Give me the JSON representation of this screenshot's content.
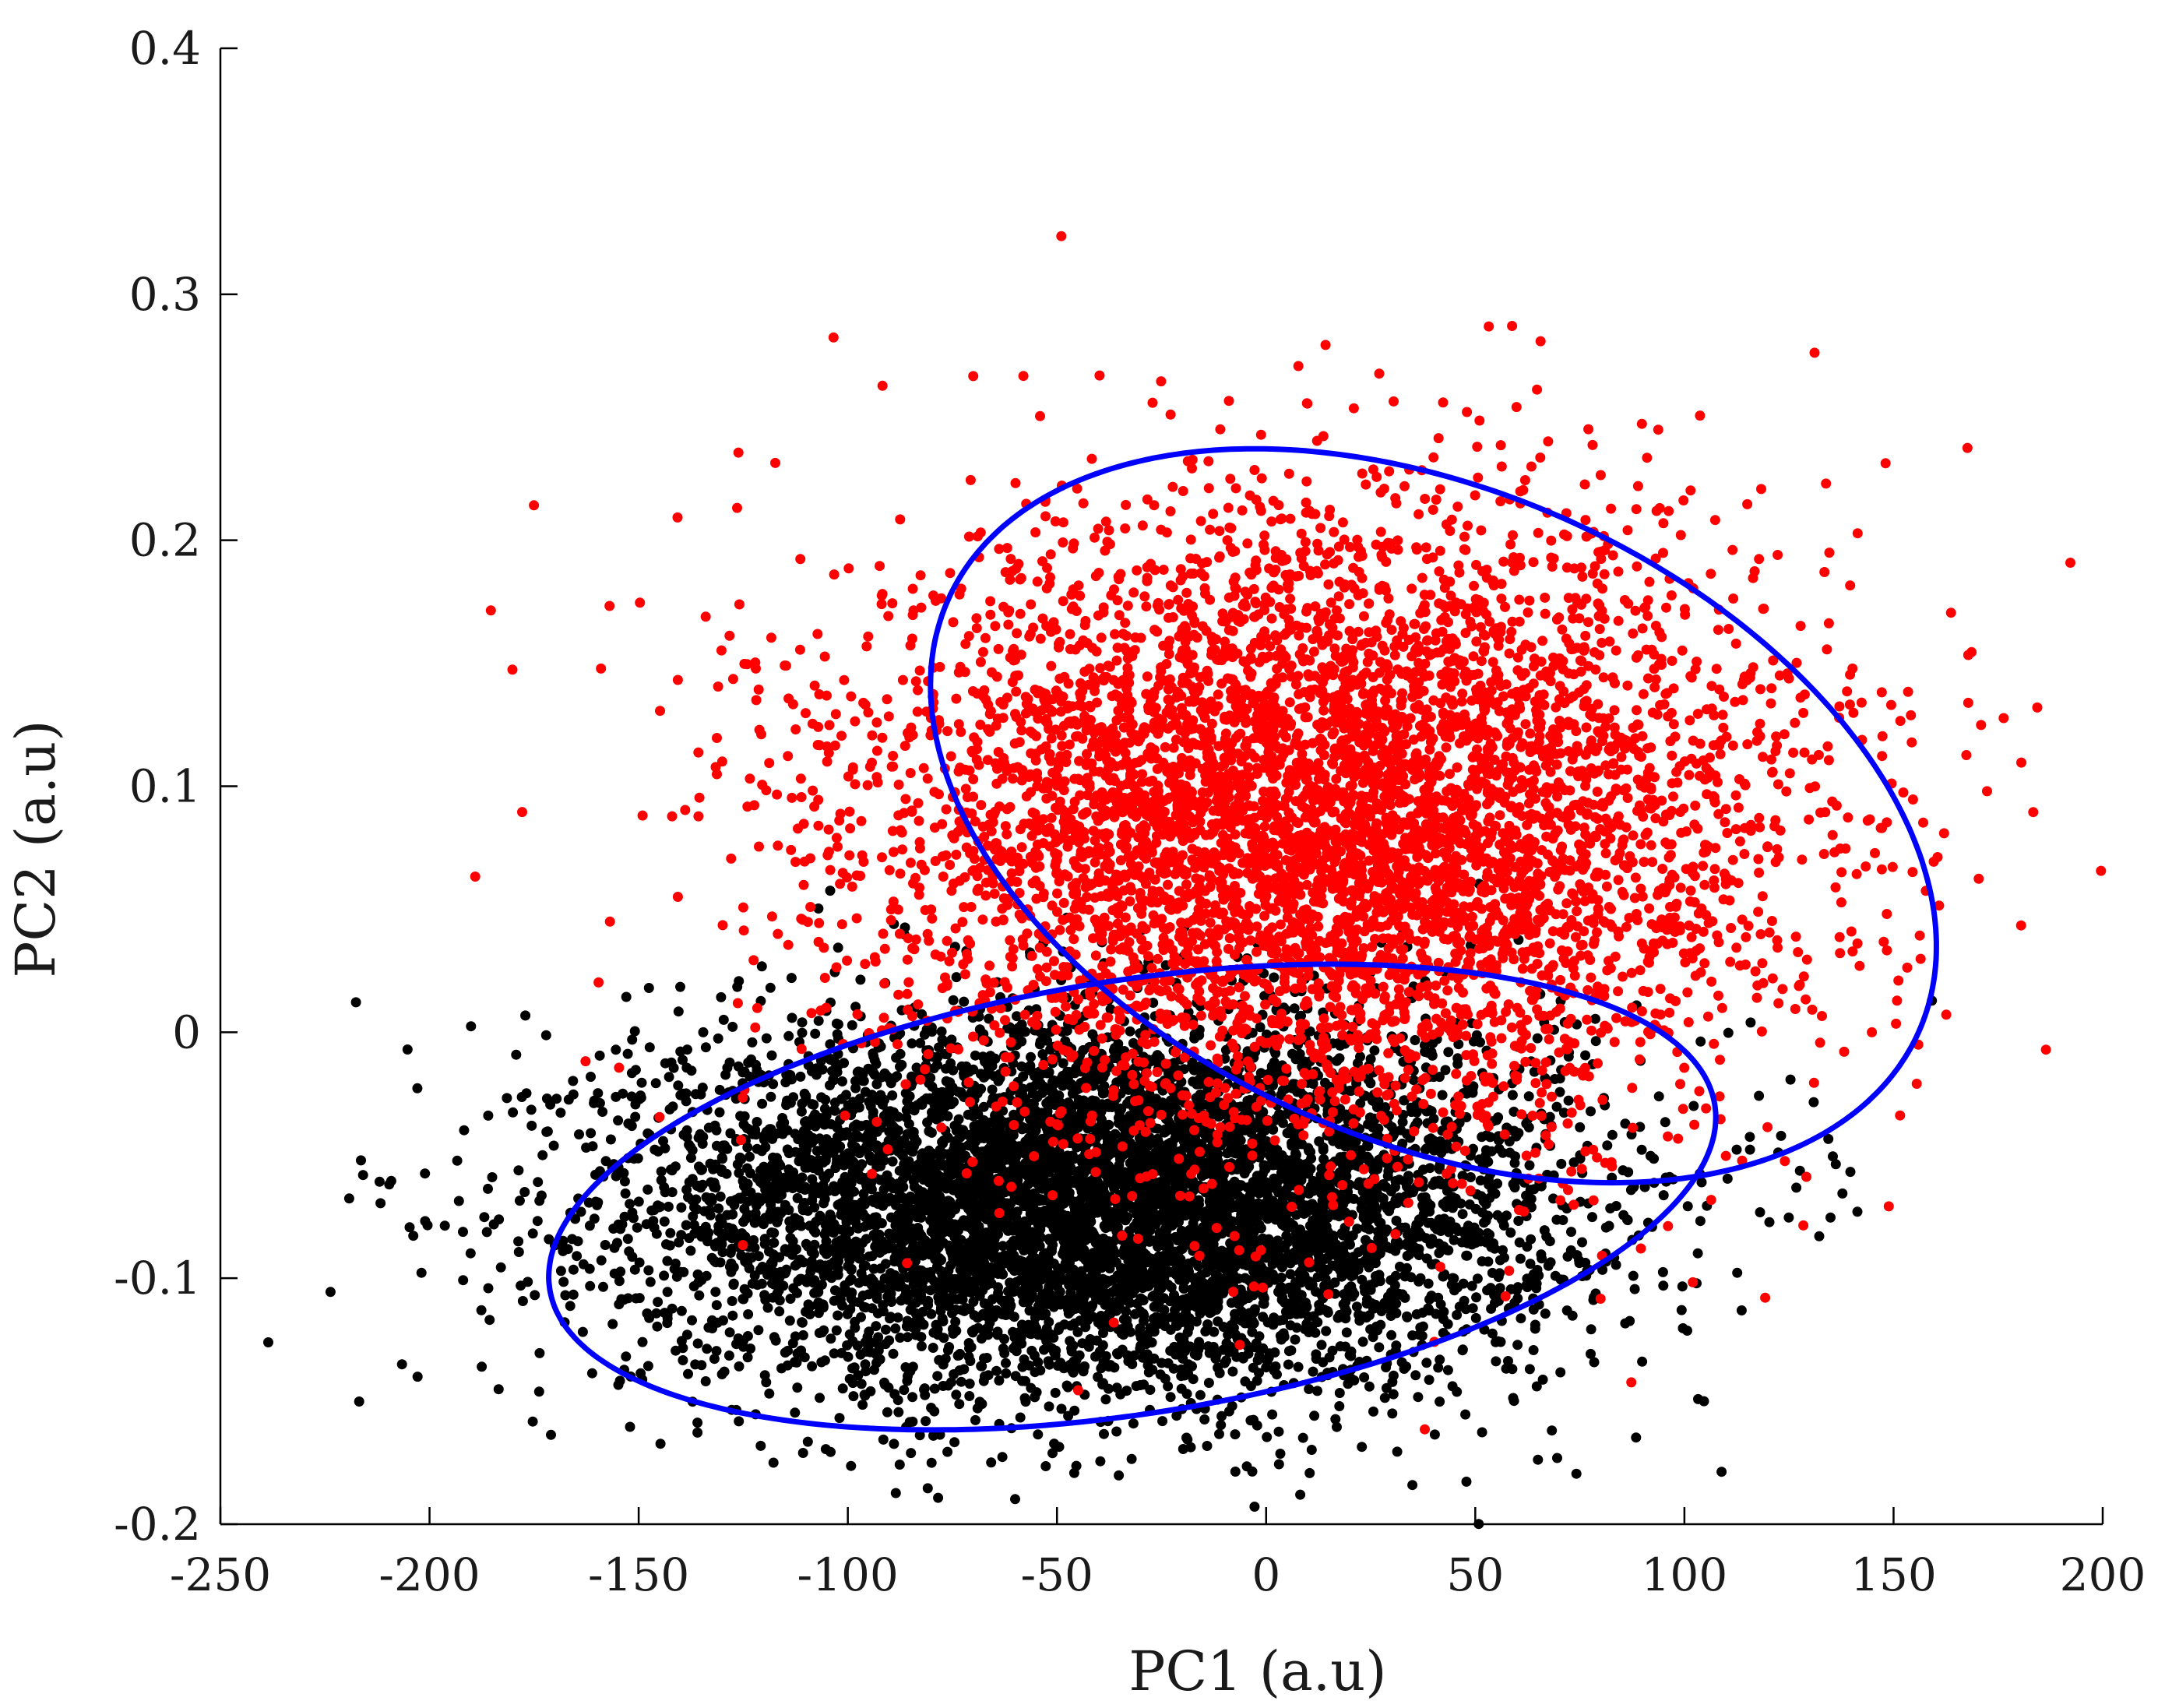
{
  "chart_data": {
    "type": "scatter",
    "title": "",
    "xlabel": "PC1 (a.u)",
    "ylabel": "PC2 (a.u)",
    "xlim": [
      -250,
      200
    ],
    "ylim": [
      -0.2,
      0.4
    ],
    "xticks": [
      -250,
      -200,
      -150,
      -100,
      -50,
      0,
      50,
      100,
      150,
      200
    ],
    "xtick_labels": [
      "-250",
      "-200",
      "-150",
      "-100",
      "-50",
      "0",
      "50",
      "100",
      "150",
      "200"
    ],
    "yticks": [
      -0.2,
      -0.1,
      0,
      0.1,
      0.2,
      0.3,
      0.4
    ],
    "ytick_labels": [
      "-0.2",
      "-0.1",
      "0",
      "0.1",
      "0.2",
      "0.3",
      "0.4"
    ],
    "grid": false,
    "legend": "none",
    "series": [
      {
        "color": "#000000",
        "center": [
          -40,
          -0.07
        ],
        "spread": [
          55,
          0.038
        ],
        "approx_count": 7000
      },
      {
        "color": "#ff0000",
        "center": [
          15,
          0.085
        ],
        "spread": [
          55,
          0.062
        ],
        "approx_count": 6000
      }
    ],
    "ellipses": [
      {
        "color": "#0000ff",
        "center": [
          -32,
          -0.067
        ],
        "semi_axes": [
          141,
          0.088
        ],
        "rotation_deg": 9
      },
      {
        "color": "#0000ff",
        "center": [
          40,
          0.088
        ],
        "semi_axes": [
          127,
          0.132
        ],
        "rotation_deg": -24
      }
    ]
  }
}
